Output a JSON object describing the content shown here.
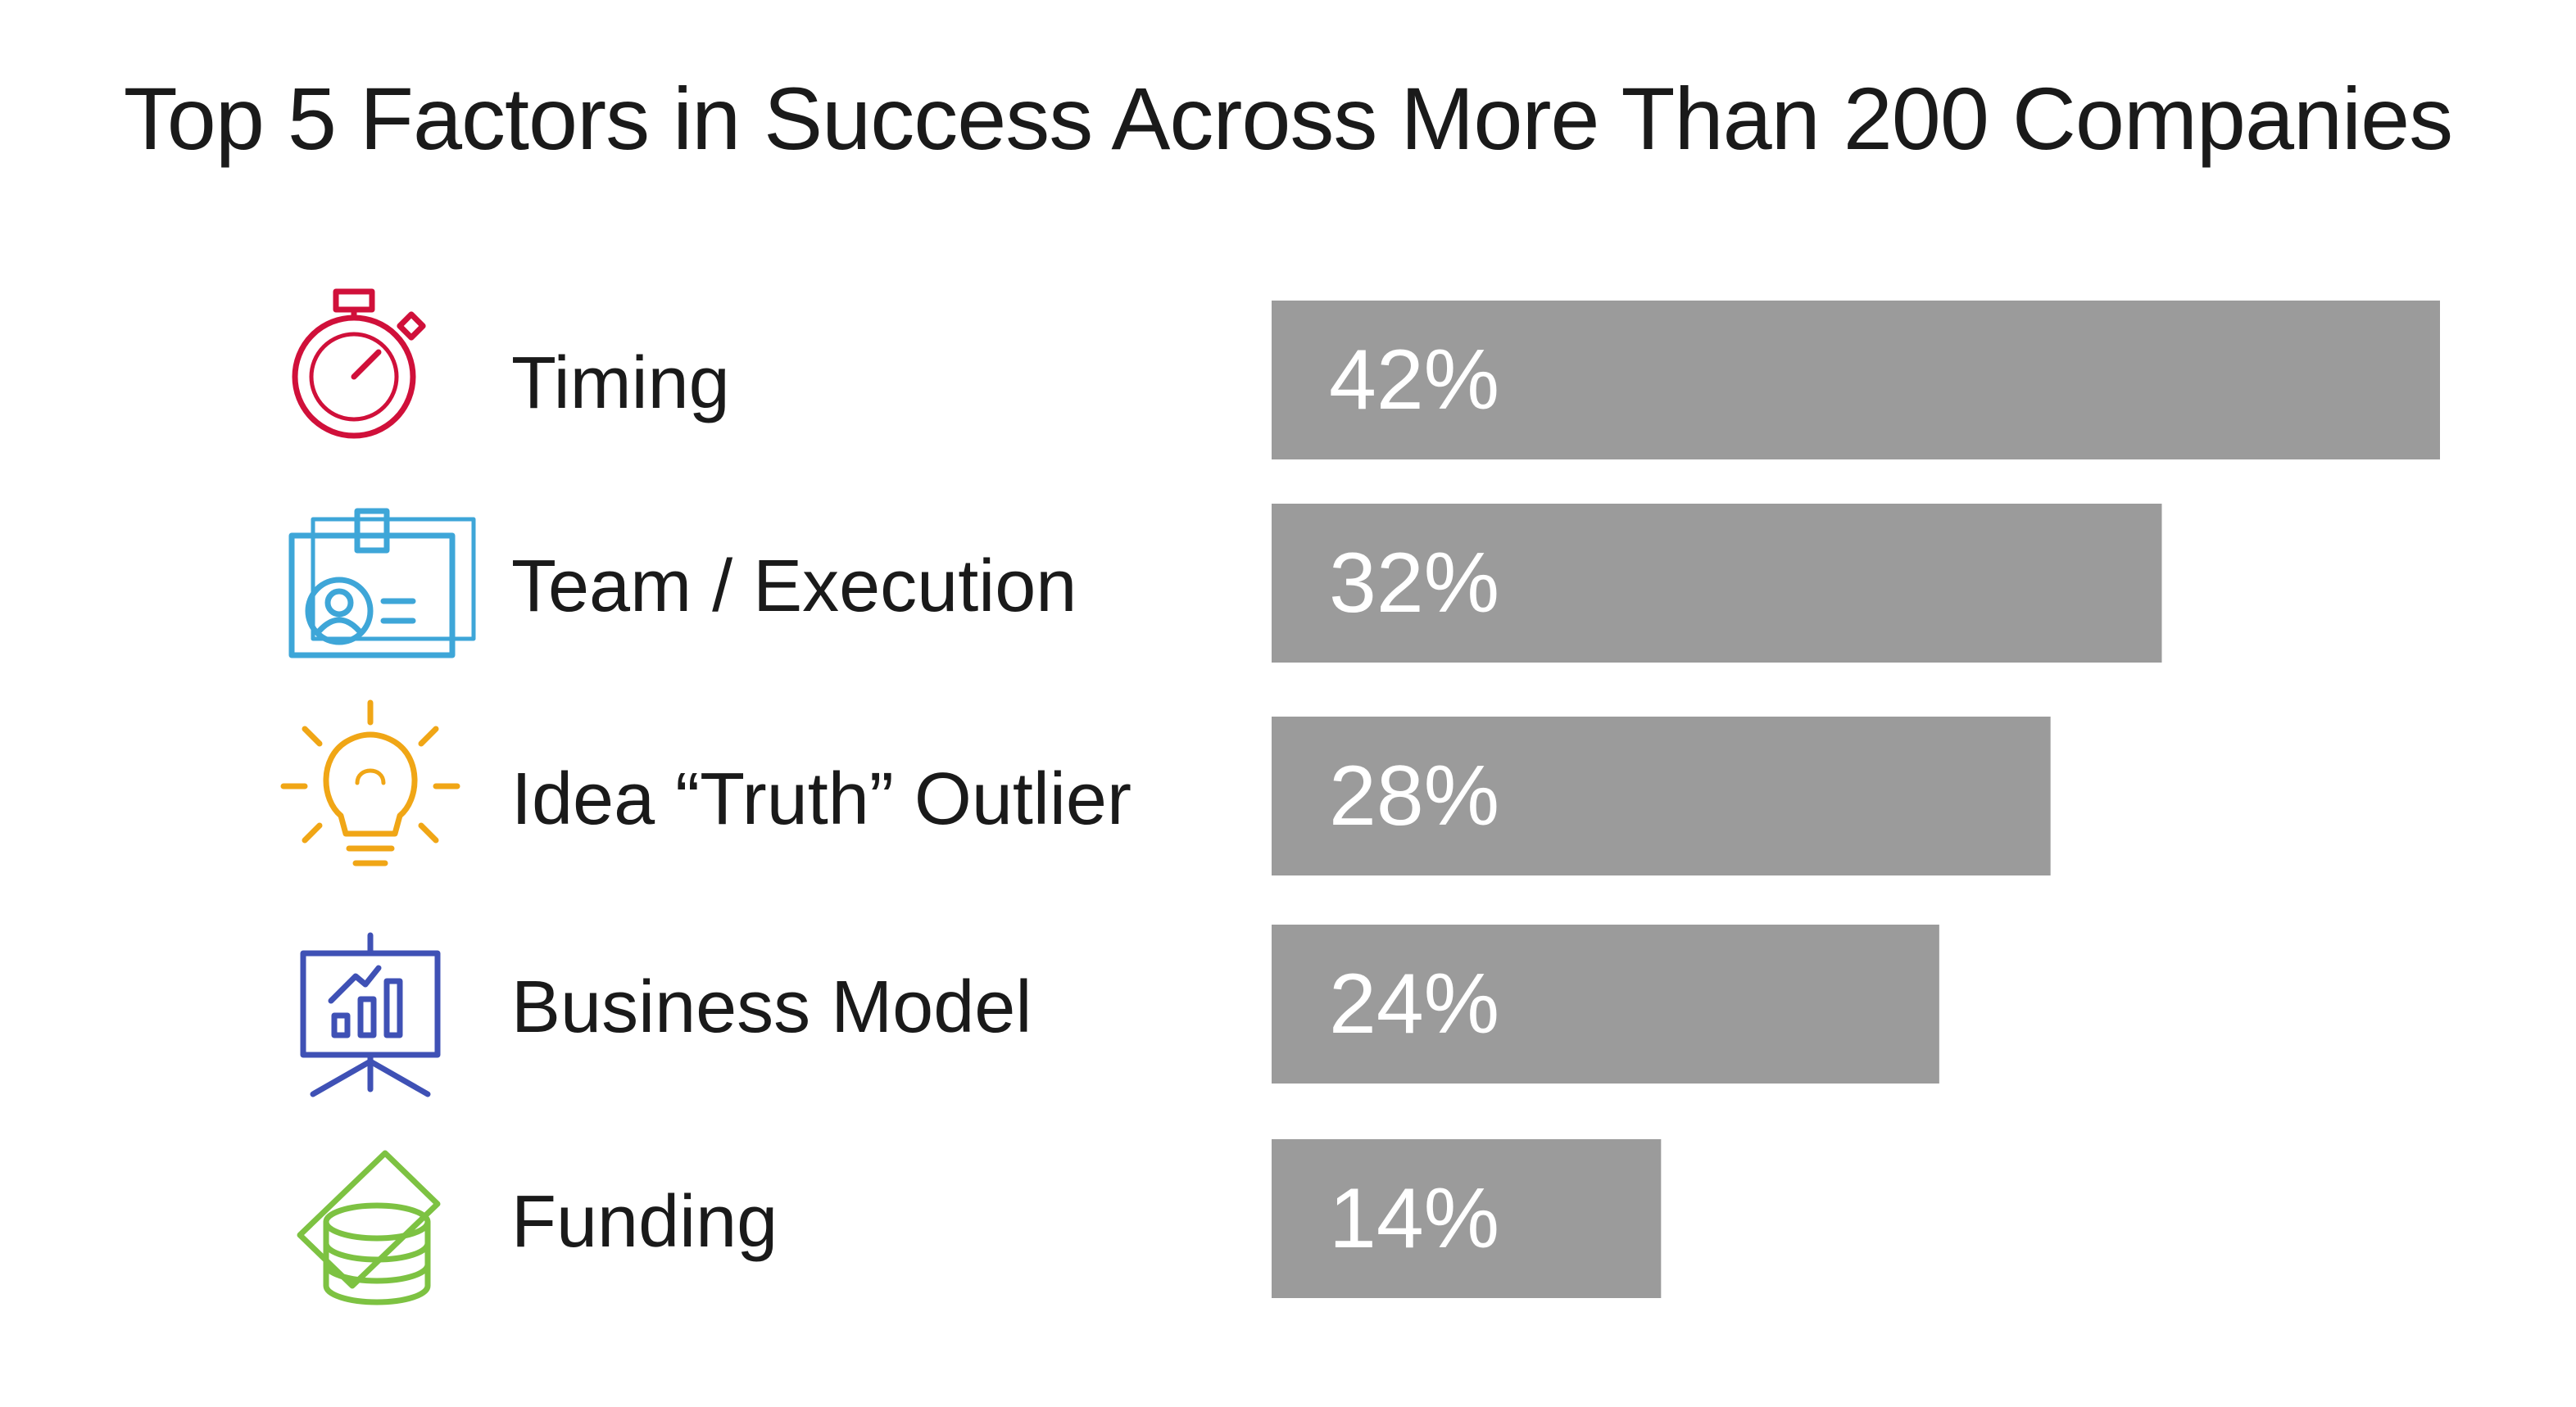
{
  "chart_data": {
    "type": "bar",
    "orientation": "horizontal",
    "title": "Top 5 Factors in Success Across More Than 200 Companies",
    "categories": [
      "Timing",
      "Team / Execution",
      "Idea “Truth” Outlier",
      "Business Model",
      "Funding"
    ],
    "values": [
      42,
      32,
      28,
      24,
      14
    ],
    "value_labels": [
      "42%",
      "32%",
      "28%",
      "24%",
      "14%"
    ],
    "xlim": [
      0,
      42
    ],
    "grid": false,
    "legend": "none",
    "bar_color": "#9b9b9b"
  },
  "icons": [
    {
      "name": "stopwatch-icon",
      "color": "#d0103a"
    },
    {
      "name": "id-badge-icon",
      "color": "#3ea6d8"
    },
    {
      "name": "lightbulb-icon",
      "color": "#f0a616"
    },
    {
      "name": "presentation-board-icon",
      "color": "#3f51b5"
    },
    {
      "name": "money-coins-icon",
      "color": "#7dc242"
    }
  ]
}
